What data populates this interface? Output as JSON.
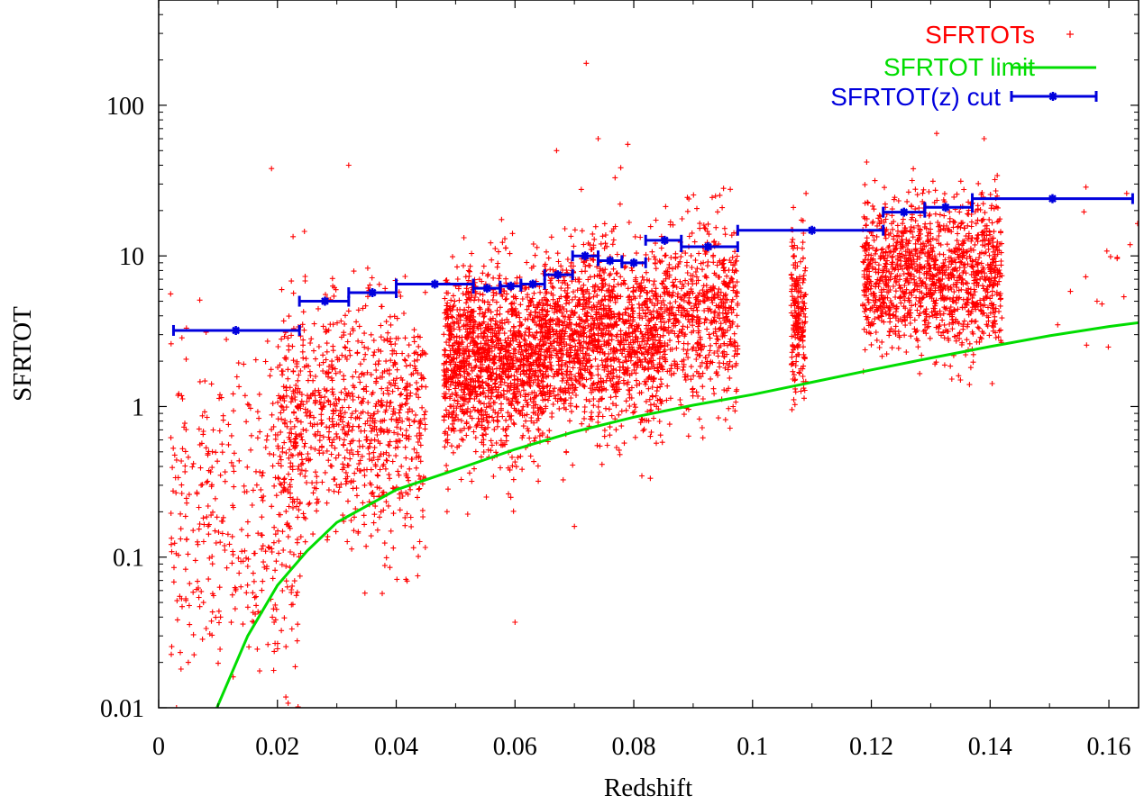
{
  "chart_data": {
    "type": "scatter",
    "xlabel": "Redshift",
    "ylabel": "SFRTOT",
    "xlim": [
      0,
      0.165
    ],
    "ylim": [
      0.01,
      500
    ],
    "y_scale": "log",
    "x_ticks": [
      "0",
      "0.02",
      "0.04",
      "0.06",
      "0.08",
      "0.1",
      "0.12",
      "0.14",
      "0.16"
    ],
    "y_ticks": [
      "0.01",
      "0.1",
      "1",
      "10",
      "100"
    ],
    "grid": false,
    "legend_position": "top-right",
    "series": [
      {
        "name": "SFRTOTs",
        "kind": "scatter",
        "marker": "+",
        "color": "#ff0000",
        "sample_points": [
          [
            0.072,
            190
          ],
          [
            0.074,
            60
          ],
          [
            0.079,
            55
          ],
          [
            0.067,
            50
          ],
          [
            0.019,
            38
          ],
          [
            0.032,
            40
          ],
          [
            0.06,
            0.037
          ],
          [
            0.07,
            0.16
          ],
          [
            0.005,
            0.02
          ],
          [
            0.003,
            0.01
          ],
          [
            0.109,
            26
          ],
          [
            0.131,
            65
          ],
          [
            0.139,
            60
          ],
          [
            0.163,
            26
          ],
          [
            0.158,
            5
          ],
          [
            0.135,
            1.5
          ]
        ],
        "clusters": [
          {
            "z_range": [
              0.002,
              0.024
            ],
            "log_sfr_mean": -0.75,
            "log_sfr_sd": 0.55,
            "count": 400
          },
          {
            "z_range": [
              0.02,
              0.045
            ],
            "log_sfr_mean": -0.1,
            "log_sfr_sd": 0.4,
            "count": 900
          },
          {
            "z_range": [
              0.048,
              0.065
            ],
            "log_sfr_mean": 0.3,
            "log_sfr_sd": 0.3,
            "count": 1400
          },
          {
            "z_range": [
              0.065,
              0.085
            ],
            "log_sfr_mean": 0.45,
            "log_sfr_sd": 0.3,
            "count": 1400
          },
          {
            "z_range": [
              0.085,
              0.0975
            ],
            "log_sfr_mean": 0.62,
            "log_sfr_sd": 0.3,
            "count": 600
          },
          {
            "z_range": [
              0.1065,
              0.109
            ],
            "log_sfr_mean": 0.62,
            "log_sfr_sd": 0.25,
            "count": 200
          },
          {
            "z_range": [
              0.1185,
              0.142
            ],
            "log_sfr_mean": 0.88,
            "log_sfr_sd": 0.25,
            "count": 1300
          },
          {
            "z_range": [
              0.15,
              0.165
            ],
            "log_sfr_mean": 0.9,
            "log_sfr_sd": 0.3,
            "count": 15
          }
        ]
      },
      {
        "name": "SFRTOT limit",
        "kind": "line",
        "color": "#00dd00",
        "points": [
          [
            0.0098,
            0.01
          ],
          [
            0.015,
            0.03
          ],
          [
            0.02,
            0.065
          ],
          [
            0.025,
            0.11
          ],
          [
            0.03,
            0.17
          ],
          [
            0.04,
            0.28
          ],
          [
            0.05,
            0.38
          ],
          [
            0.06,
            0.52
          ],
          [
            0.07,
            0.68
          ],
          [
            0.08,
            0.85
          ],
          [
            0.09,
            1.02
          ],
          [
            0.1,
            1.2
          ],
          [
            0.11,
            1.45
          ],
          [
            0.12,
            1.75
          ],
          [
            0.13,
            2.1
          ],
          [
            0.14,
            2.5
          ],
          [
            0.15,
            2.95
          ],
          [
            0.16,
            3.4
          ],
          [
            0.165,
            3.6
          ]
        ]
      },
      {
        "name": "SFRTOT(z) cut",
        "kind": "xerror",
        "color": "#0000dd",
        "marker": "asterisk",
        "points": [
          {
            "x": 0.013,
            "xmin": 0.0025,
            "xmax": 0.0237,
            "y": 3.2
          },
          {
            "x": 0.028,
            "xmin": 0.0237,
            "xmax": 0.032,
            "y": 5.0
          },
          {
            "x": 0.036,
            "xmin": 0.032,
            "xmax": 0.04,
            "y": 5.7
          },
          {
            "x": 0.0465,
            "xmin": 0.04,
            "xmax": 0.053,
            "y": 6.5
          },
          {
            "x": 0.0553,
            "xmin": 0.053,
            "xmax": 0.0575,
            "y": 6.1
          },
          {
            "x": 0.0593,
            "xmin": 0.0575,
            "xmax": 0.061,
            "y": 6.3
          },
          {
            "x": 0.063,
            "xmin": 0.061,
            "xmax": 0.065,
            "y": 6.5
          },
          {
            "x": 0.0672,
            "xmin": 0.065,
            "xmax": 0.0697,
            "y": 7.5
          },
          {
            "x": 0.0718,
            "xmin": 0.0697,
            "xmax": 0.074,
            "y": 10.0
          },
          {
            "x": 0.076,
            "xmin": 0.074,
            "xmax": 0.078,
            "y": 9.3
          },
          {
            "x": 0.08,
            "xmin": 0.078,
            "xmax": 0.082,
            "y": 9.0
          },
          {
            "x": 0.0852,
            "xmin": 0.082,
            "xmax": 0.088,
            "y": 12.7
          },
          {
            "x": 0.0925,
            "xmin": 0.088,
            "xmax": 0.0975,
            "y": 11.5
          },
          {
            "x": 0.11,
            "xmin": 0.0975,
            "xmax": 0.122,
            "y": 14.8
          },
          {
            "x": 0.1255,
            "xmin": 0.122,
            "xmax": 0.129,
            "y": 19.5
          },
          {
            "x": 0.1325,
            "xmin": 0.129,
            "xmax": 0.137,
            "y": 21.0
          },
          {
            "x": 0.1505,
            "xmin": 0.137,
            "xmax": 0.164,
            "y": 24.0
          }
        ]
      }
    ]
  }
}
